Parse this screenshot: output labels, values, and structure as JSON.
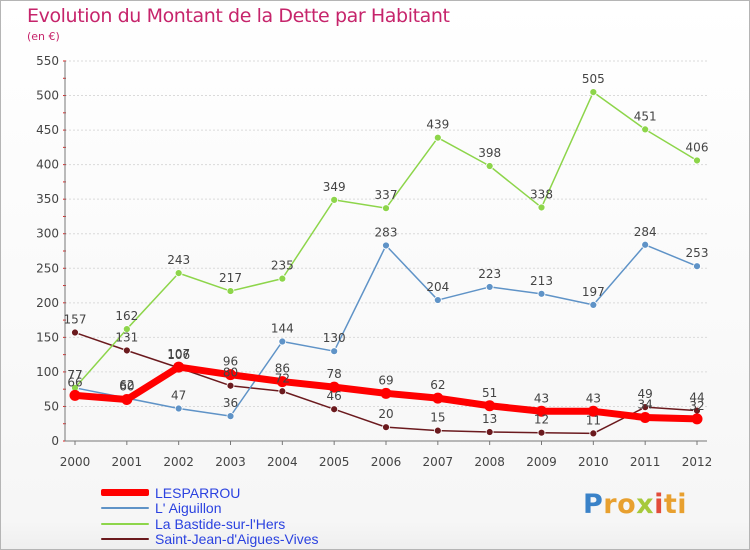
{
  "header": {
    "title": "Evolution du Montant de la Dette par Habitant",
    "unit": "(en €)"
  },
  "logo": {
    "text": "Proxiti"
  },
  "chart_data": {
    "type": "line",
    "title": "Evolution du Montant de la Dette par Habitant",
    "subtitle": "(en €)",
    "xlabel": "",
    "ylabel": "",
    "x": [
      "2000",
      "2001",
      "2002",
      "2003",
      "2004",
      "2005",
      "2006",
      "2007",
      "2008",
      "2009",
      "2010",
      "2011",
      "2012"
    ],
    "ylim": [
      0,
      550
    ],
    "yticks": [
      0,
      50,
      100,
      150,
      200,
      250,
      300,
      350,
      400,
      450,
      500,
      550
    ],
    "grid": true,
    "legend_position": "bottom-left",
    "series": [
      {
        "name": "LESPARROU",
        "color": "#ff0000",
        "values": [
          66,
          60,
          107,
          96,
          86,
          78,
          69,
          62,
          51,
          43,
          43,
          34,
          32
        ]
      },
      {
        "name": "L' Aiguillon",
        "color": "#5f93c7",
        "values": [
          77,
          62,
          47,
          36,
          144,
          130,
          283,
          204,
          223,
          213,
          197,
          284,
          253
        ]
      },
      {
        "name": "La Bastide-sur-l'Hers",
        "color": "#8dd54a",
        "values": [
          77,
          162,
          243,
          217,
          235,
          349,
          337,
          439,
          398,
          338,
          505,
          451,
          406
        ]
      },
      {
        "name": "Saint-Jean-d'Aigues-Vives",
        "color": "#6b1a1e",
        "values": [
          157,
          131,
          106,
          80,
          72,
          46,
          20,
          15,
          13,
          12,
          11,
          49,
          44
        ]
      }
    ]
  }
}
